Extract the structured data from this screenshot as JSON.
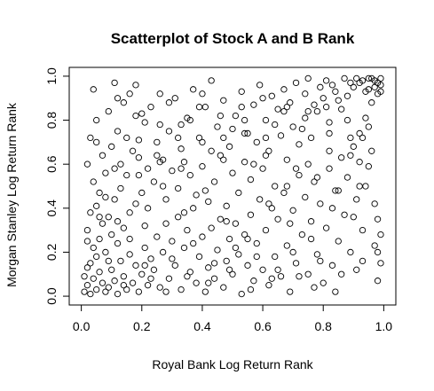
{
  "chart_data": {
    "type": "scatter",
    "title": "Scatterplot of Stock A and B Rank",
    "xlabel": "Royal Bank Log Return Rank",
    "ylabel": "Morgan Stanley Log Return Rank",
    "xlim": [
      -0.04,
      1.04
    ],
    "ylim": [
      -0.04,
      1.04
    ],
    "xticks": [
      0.0,
      0.2,
      0.4,
      0.6,
      0.8,
      1.0
    ],
    "yticks": [
      0.0,
      0.2,
      0.4,
      0.6,
      0.8,
      1.0
    ],
    "xtick_labels": [
      "0.0",
      "0.2",
      "0.4",
      "0.6",
      "0.8",
      "1.0"
    ],
    "ytick_labels": [
      "0.0",
      "0.2",
      "0.4",
      "0.6",
      "0.8",
      "1.0"
    ],
    "marker": "open-circle",
    "grid": false,
    "series": [
      {
        "points": [
          [
            0.01,
            0.02
          ],
          [
            0.02,
            0.05
          ],
          [
            0.03,
            0.01
          ],
          [
            0.04,
            0.08
          ],
          [
            0.05,
            0.03
          ],
          [
            0.06,
            0.11
          ],
          [
            0.02,
            0.13
          ],
          [
            0.07,
            0.06
          ],
          [
            0.08,
            0.02
          ],
          [
            0.01,
            0.09
          ],
          [
            0.03,
            0.15
          ],
          [
            0.05,
            0.18
          ],
          [
            0.09,
            0.04
          ],
          [
            0.1,
            0.12
          ],
          [
            0.11,
            0.07
          ],
          [
            0.04,
            0.22
          ],
          [
            0.06,
            0.26
          ],
          [
            0.12,
            0.01
          ],
          [
            0.13,
            0.16
          ],
          [
            0.02,
            0.3
          ],
          [
            0.08,
            0.2
          ],
          [
            0.14,
            0.09
          ],
          [
            0.15,
            0.03
          ],
          [
            0.07,
            0.33
          ],
          [
            0.16,
            0.19
          ],
          [
            0.03,
            0.38
          ],
          [
            0.1,
            0.28
          ],
          [
            0.17,
            0.06
          ],
          [
            0.12,
            0.24
          ],
          [
            0.18,
            0.14
          ],
          [
            0.05,
            0.41
          ],
          [
            0.09,
            0.36
          ],
          [
            0.19,
            0.02
          ],
          [
            0.2,
            0.1
          ],
          [
            0.14,
            0.31
          ],
          [
            0.06,
            0.47
          ],
          [
            0.21,
            0.22
          ],
          [
            0.11,
            0.44
          ],
          [
            0.22,
            0.05
          ],
          [
            0.16,
            0.38
          ],
          [
            0.04,
            0.52
          ],
          [
            0.23,
            0.17
          ],
          [
            0.08,
            0.56
          ],
          [
            0.13,
            0.49
          ],
          [
            0.24,
            0.12
          ],
          [
            0.02,
            0.6
          ],
          [
            0.18,
            0.42
          ],
          [
            0.25,
            0.27
          ],
          [
            0.07,
            0.64
          ],
          [
            0.26,
            0.04
          ],
          [
            0.15,
            0.55
          ],
          [
            0.1,
            0.68
          ],
          [
            0.27,
            0.2
          ],
          [
            0.2,
            0.47
          ],
          [
            0.03,
            0.72
          ],
          [
            0.28,
            0.33
          ],
          [
            0.12,
            0.75
          ],
          [
            0.22,
            0.58
          ],
          [
            0.29,
            0.08
          ],
          [
            0.05,
            0.8
          ],
          [
            0.17,
            0.66
          ],
          [
            0.3,
            0.25
          ],
          [
            0.09,
            0.84
          ],
          [
            0.24,
            0.52
          ],
          [
            0.31,
            0.14
          ],
          [
            0.14,
            0.88
          ],
          [
            0.26,
            0.61
          ],
          [
            0.32,
            0.36
          ],
          [
            0.04,
            0.94
          ],
          [
            0.19,
            0.71
          ],
          [
            0.33,
            0.03
          ],
          [
            0.11,
            0.97
          ],
          [
            0.28,
            0.44
          ],
          [
            0.34,
            0.22
          ],
          [
            0.21,
            0.79
          ],
          [
            0.35,
            0.3
          ],
          [
            0.16,
            0.92
          ],
          [
            0.3,
            0.57
          ],
          [
            0.36,
            0.11
          ],
          [
            0.23,
            0.86
          ],
          [
            0.37,
            0.4
          ],
          [
            0.25,
            0.7
          ],
          [
            0.38,
            0.06
          ],
          [
            0.18,
            0.96
          ],
          [
            0.32,
            0.49
          ],
          [
            0.39,
            0.18
          ],
          [
            0.27,
            0.62
          ],
          [
            0.4,
            0.27
          ],
          [
            0.2,
            0.83
          ],
          [
            0.34,
            0.38
          ],
          [
            0.41,
            0.02
          ],
          [
            0.29,
            0.75
          ],
          [
            0.42,
            0.13
          ],
          [
            0.36,
            0.55
          ],
          [
            0.43,
            0.31
          ],
          [
            0.31,
            0.9
          ],
          [
            0.44,
            0.08
          ],
          [
            0.38,
            0.46
          ],
          [
            0.45,
            0.21
          ],
          [
            0.33,
            0.67
          ],
          [
            0.46,
            0.35
          ],
          [
            0.4,
            0.59
          ],
          [
            0.47,
            0.04
          ],
          [
            0.35,
            0.81
          ],
          [
            0.48,
            0.16
          ],
          [
            0.42,
            0.43
          ],
          [
            0.49,
            0.26
          ],
          [
            0.37,
            0.94
          ],
          [
            0.5,
            0.1
          ],
          [
            0.44,
            0.52
          ],
          [
            0.51,
            0.33
          ],
          [
            0.39,
            0.72
          ],
          [
            0.52,
            0.19
          ],
          [
            0.46,
            0.64
          ],
          [
            0.53,
            0.01
          ],
          [
            0.41,
            0.86
          ],
          [
            0.54,
            0.28
          ],
          [
            0.48,
            0.41
          ],
          [
            0.55,
            0.14
          ],
          [
            0.43,
            0.98
          ],
          [
            0.56,
            0.37
          ],
          [
            0.5,
            0.56
          ],
          [
            0.57,
            0.07
          ],
          [
            0.45,
            0.77
          ],
          [
            0.58,
            0.24
          ],
          [
            0.52,
            0.47
          ],
          [
            0.59,
            0.44
          ],
          [
            0.47,
            0.89
          ],
          [
            0.6,
            0.12
          ],
          [
            0.54,
            0.61
          ],
          [
            0.61,
            0.3
          ],
          [
            0.49,
            0.68
          ],
          [
            0.62,
            0.05
          ],
          [
            0.56,
            0.53
          ],
          [
            0.63,
            0.4
          ],
          [
            0.51,
            0.82
          ],
          [
            0.64,
            0.18
          ],
          [
            0.58,
            0.7
          ],
          [
            0.65,
            0.35
          ],
          [
            0.53,
            0.93
          ],
          [
            0.66,
            0.09
          ],
          [
            0.6,
            0.58
          ],
          [
            0.67,
            0.47
          ],
          [
            0.55,
            0.74
          ],
          [
            0.68,
            0.23
          ],
          [
            0.62,
            0.66
          ],
          [
            0.69,
            0.02
          ],
          [
            0.57,
            0.87
          ],
          [
            0.7,
            0.39
          ],
          [
            0.64,
            0.5
          ],
          [
            0.71,
            0.15
          ],
          [
            0.59,
            0.96
          ],
          [
            0.72,
            0.55
          ],
          [
            0.66,
            0.73
          ],
          [
            0.73,
            0.28
          ],
          [
            0.61,
            0.8
          ],
          [
            0.74,
            0.45
          ],
          [
            0.68,
            0.62
          ],
          [
            0.75,
            0.1
          ],
          [
            0.63,
            0.91
          ],
          [
            0.76,
            0.34
          ],
          [
            0.7,
            0.77
          ],
          [
            0.77,
            0.52
          ],
          [
            0.65,
            0.85
          ],
          [
            0.78,
            0.19
          ],
          [
            0.72,
            0.69
          ],
          [
            0.79,
            0.42
          ],
          [
            0.67,
            0.94
          ],
          [
            0.8,
            0.06
          ],
          [
            0.74,
            0.81
          ],
          [
            0.81,
            0.31
          ],
          [
            0.69,
            0.88
          ],
          [
            0.82,
            0.58
          ],
          [
            0.76,
            0.72
          ],
          [
            0.83,
            0.14
          ],
          [
            0.71,
            0.97
          ],
          [
            0.84,
            0.48
          ],
          [
            0.78,
            0.84
          ],
          [
            0.85,
            0.25
          ],
          [
            0.73,
            0.76
          ],
          [
            0.86,
            0.63
          ],
          [
            0.8,
            0.9
          ],
          [
            0.87,
            0.37
          ],
          [
            0.75,
            0.99
          ],
          [
            0.88,
            0.54
          ],
          [
            0.82,
            0.79
          ],
          [
            0.89,
            0.2
          ],
          [
            0.77,
            0.87
          ],
          [
            0.9,
            0.68
          ],
          [
            0.84,
            0.93
          ],
          [
            0.91,
            0.44
          ],
          [
            0.79,
            0.95
          ],
          [
            0.92,
            0.74
          ],
          [
            0.86,
            0.85
          ],
          [
            0.93,
            0.3
          ],
          [
            0.81,
            0.98
          ],
          [
            0.94,
            0.81
          ],
          [
            0.88,
            0.91
          ],
          [
            0.95,
            0.59
          ],
          [
            0.83,
            0.96
          ],
          [
            0.96,
            0.88
          ],
          [
            0.9,
            0.95
          ],
          [
            0.97,
            0.23
          ],
          [
            0.85,
            0.89
          ],
          [
            0.98,
            0.92
          ],
          [
            0.92,
            0.97
          ],
          [
            0.99,
            0.96
          ],
          [
            0.87,
            0.99
          ],
          [
            0.99,
            0.99
          ],
          [
            0.94,
            0.93
          ],
          [
            0.97,
            0.98
          ],
          [
            0.95,
            0.94
          ],
          [
            0.98,
            0.97
          ],
          [
            0.96,
            0.99
          ],
          [
            0.93,
            0.98
          ],
          [
            0.99,
            0.93
          ],
          [
            0.91,
            0.99
          ],
          [
            0.97,
            0.95
          ],
          [
            0.89,
            0.97
          ],
          [
            0.95,
            0.99
          ],
          [
            0.99,
            0.15
          ],
          [
            0.98,
            0.07
          ],
          [
            0.97,
            0.42
          ],
          [
            0.96,
            0.66
          ],
          [
            0.94,
            0.5
          ],
          [
            0.93,
            0.72
          ],
          [
            0.99,
            0.28
          ],
          [
            0.92,
            0.61
          ],
          [
            0.98,
            0.35
          ],
          [
            0.95,
            0.77
          ],
          [
            0.06,
            0.36
          ],
          [
            0.13,
            0.6
          ],
          [
            0.21,
            0.32
          ],
          [
            0.27,
            0.5
          ],
          [
            0.34,
            0.61
          ],
          [
            0.41,
            0.48
          ],
          [
            0.48,
            0.34
          ],
          [
            0.55,
            0.26
          ],
          [
            0.62,
            0.42
          ],
          [
            0.69,
            0.33
          ],
          [
            0.76,
            0.26
          ],
          [
            0.83,
            0.4
          ],
          [
            0.9,
            0.36
          ],
          [
            0.12,
            0.34
          ],
          [
            0.19,
            0.55
          ],
          [
            0.26,
            0.78
          ],
          [
            0.33,
            0.58
          ],
          [
            0.4,
            0.7
          ],
          [
            0.47,
            0.62
          ],
          [
            0.54,
            0.74
          ],
          [
            0.61,
            0.64
          ],
          [
            0.68,
            0.5
          ],
          [
            0.75,
            0.6
          ],
          [
            0.82,
            0.66
          ],
          [
            0.89,
            0.72
          ],
          [
            0.08,
            0.45
          ],
          [
            0.15,
            0.72
          ],
          [
            0.22,
            0.4
          ],
          [
            0.29,
            0.88
          ],
          [
            0.36,
            0.8
          ],
          [
            0.43,
            0.66
          ],
          [
            0.5,
            0.76
          ],
          [
            0.57,
            0.6
          ],
          [
            0.64,
            0.78
          ],
          [
            0.71,
            0.58
          ],
          [
            0.78,
            0.54
          ],
          [
            0.85,
            0.48
          ],
          [
            0.92,
            0.5
          ],
          [
            0.02,
            0.25
          ],
          [
            0.09,
            0.16
          ],
          [
            0.16,
            0.26
          ],
          [
            0.23,
            0.08
          ],
          [
            0.3,
            0.17
          ],
          [
            0.37,
            0.24
          ],
          [
            0.44,
            0.15
          ],
          [
            0.51,
            0.22
          ],
          [
            0.58,
            0.18
          ],
          [
            0.65,
            0.12
          ],
          [
            0.72,
            0.09
          ],
          [
            0.79,
            0.16
          ],
          [
            0.86,
            0.1
          ],
          [
            0.93,
            0.16
          ],
          [
            0.11,
            0.58
          ],
          [
            0.18,
            0.82
          ],
          [
            0.25,
            0.64
          ],
          [
            0.32,
            0.72
          ],
          [
            0.39,
            0.86
          ],
          [
            0.46,
            0.82
          ],
          [
            0.53,
            0.86
          ],
          [
            0.6,
            0.9
          ],
          [
            0.67,
            0.84
          ],
          [
            0.74,
            0.92
          ],
          [
            0.81,
            0.86
          ],
          [
            0.88,
            0.8
          ],
          [
            0.05,
            0.7
          ],
          [
            0.12,
            0.9
          ],
          [
            0.19,
            0.63
          ],
          [
            0.26,
            0.92
          ],
          [
            0.33,
            0.78
          ],
          [
            0.4,
            0.92
          ],
          [
            0.47,
            0.72
          ],
          [
            0.54,
            0.8
          ],
          [
            0.61,
            0.72
          ],
          [
            0.68,
            0.86
          ],
          [
            0.75,
            0.84
          ],
          [
            0.82,
            0.74
          ],
          [
            0.89,
            0.64
          ],
          [
            0.14,
            0.05
          ],
          [
            0.21,
            0.14
          ],
          [
            0.28,
            0.02
          ],
          [
            0.35,
            0.09
          ],
          [
            0.42,
            0.06
          ],
          [
            0.49,
            0.12
          ],
          [
            0.56,
            0.03
          ],
          [
            0.63,
            0.08
          ],
          [
            0.7,
            0.2
          ],
          [
            0.77,
            0.04
          ],
          [
            0.84,
            0.02
          ],
          [
            0.91,
            0.12
          ],
          [
            0.98,
            0.2
          ]
        ]
      }
    ]
  }
}
